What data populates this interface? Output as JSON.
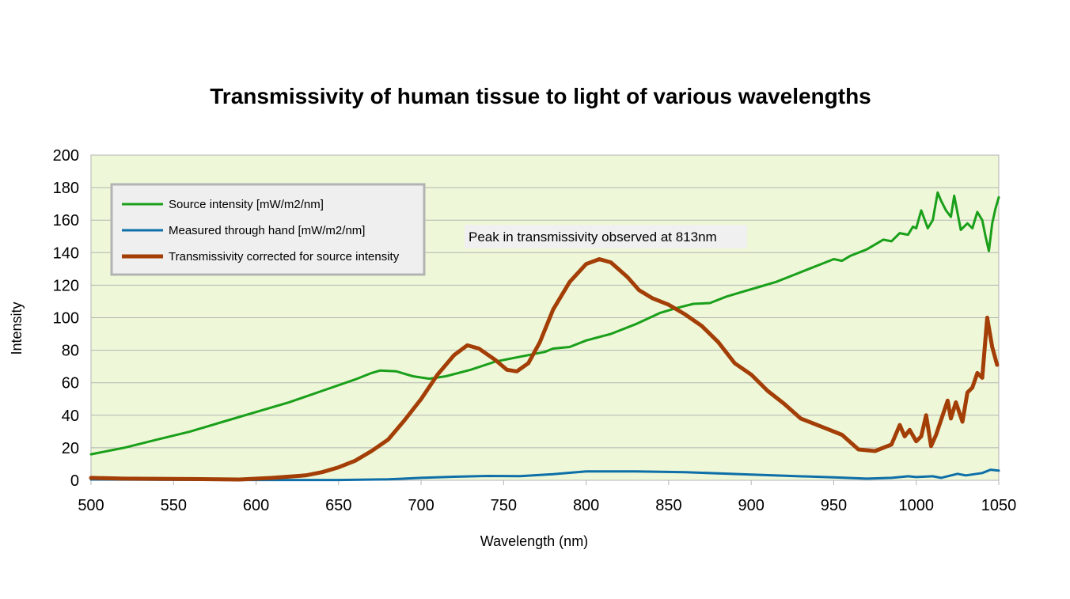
{
  "chart_data": {
    "type": "line",
    "title": "Transmissivity of human tissue to light of various wavelengths",
    "xlabel": "Wavelength (nm)",
    "ylabel": "Intensity",
    "xlim": [
      500,
      1050
    ],
    "ylim": [
      0,
      200
    ],
    "x_ticks": [
      500,
      550,
      600,
      650,
      700,
      750,
      800,
      850,
      900,
      950,
      1000,
      1050
    ],
    "y_ticks": [
      0,
      20,
      40,
      60,
      80,
      100,
      120,
      140,
      160,
      180,
      200
    ],
    "grid": "horizontal",
    "plot_background": "#eef8d8",
    "legend_position": "top-left",
    "annotation": "Peak in transmissivity observed at 813nm",
    "series": [
      {
        "name": "Source intensity [mW/m2/nm]",
        "color": "#1a9f1a",
        "points": [
          [
            500,
            16
          ],
          [
            520,
            20
          ],
          [
            540,
            25
          ],
          [
            560,
            30
          ],
          [
            580,
            36
          ],
          [
            600,
            42
          ],
          [
            620,
            48
          ],
          [
            640,
            55
          ],
          [
            660,
            62
          ],
          [
            670,
            66
          ],
          [
            675,
            67.5
          ],
          [
            685,
            67
          ],
          [
            695,
            64
          ],
          [
            705,
            62.5
          ],
          [
            715,
            64
          ],
          [
            730,
            68
          ],
          [
            745,
            73
          ],
          [
            760,
            76
          ],
          [
            775,
            79
          ],
          [
            780,
            81
          ],
          [
            790,
            82
          ],
          [
            800,
            86
          ],
          [
            815,
            90
          ],
          [
            830,
            96
          ],
          [
            845,
            103
          ],
          [
            855,
            106
          ],
          [
            865,
            108.5
          ],
          [
            875,
            109
          ],
          [
            885,
            113
          ],
          [
            895,
            116
          ],
          [
            905,
            119
          ],
          [
            915,
            122
          ],
          [
            925,
            126
          ],
          [
            935,
            130
          ],
          [
            945,
            134
          ],
          [
            950,
            136
          ],
          [
            955,
            135
          ],
          [
            960,
            138
          ],
          [
            970,
            142
          ],
          [
            980,
            148
          ],
          [
            985,
            147
          ],
          [
            990,
            152
          ],
          [
            995,
            151
          ],
          [
            998,
            156
          ],
          [
            1000,
            155
          ],
          [
            1003,
            166
          ],
          [
            1007,
            155
          ],
          [
            1010,
            160
          ],
          [
            1013,
            177
          ],
          [
            1015,
            172
          ],
          [
            1018,
            166
          ],
          [
            1021,
            162
          ],
          [
            1023,
            175
          ],
          [
            1027,
            154
          ],
          [
            1031,
            158
          ],
          [
            1034,
            155
          ],
          [
            1037,
            165
          ],
          [
            1040,
            160
          ],
          [
            1042,
            150
          ],
          [
            1044,
            141
          ],
          [
            1046,
            158
          ],
          [
            1048,
            167
          ],
          [
            1050,
            174
          ]
        ]
      },
      {
        "name": "Measured through hand [mW/m2/nm]",
        "color": "#0e6fa8",
        "points": [
          [
            500,
            0.5
          ],
          [
            550,
            0.3
          ],
          [
            600,
            0.2
          ],
          [
            650,
            0.2
          ],
          [
            680,
            0.6
          ],
          [
            700,
            1.5
          ],
          [
            720,
            2.2
          ],
          [
            740,
            2.7
          ],
          [
            760,
            2.6
          ],
          [
            780,
            3.8
          ],
          [
            800,
            5.5
          ],
          [
            830,
            5.5
          ],
          [
            860,
            5
          ],
          [
            900,
            3.5
          ],
          [
            950,
            1.8
          ],
          [
            970,
            1
          ],
          [
            985,
            1.5
          ],
          [
            995,
            2.5
          ],
          [
            1000,
            2
          ],
          [
            1010,
            2.5
          ],
          [
            1015,
            1.5
          ],
          [
            1025,
            4
          ],
          [
            1030,
            3
          ],
          [
            1040,
            4.5
          ],
          [
            1045,
            6.5
          ],
          [
            1050,
            6
          ]
        ]
      },
      {
        "name": "Transmissivity corrected for source intensity",
        "color": "#a33e06",
        "points": [
          [
            500,
            1.5
          ],
          [
            520,
            1
          ],
          [
            560,
            0.8
          ],
          [
            590,
            0.5
          ],
          [
            610,
            1.5
          ],
          [
            630,
            3
          ],
          [
            640,
            5
          ],
          [
            650,
            8
          ],
          [
            660,
            12
          ],
          [
            670,
            18
          ],
          [
            680,
            25
          ],
          [
            690,
            37
          ],
          [
            700,
            50
          ],
          [
            710,
            65
          ],
          [
            720,
            77
          ],
          [
            728,
            83
          ],
          [
            735,
            81
          ],
          [
            745,
            74
          ],
          [
            752,
            68
          ],
          [
            758,
            67
          ],
          [
            765,
            72
          ],
          [
            772,
            85
          ],
          [
            780,
            105
          ],
          [
            790,
            122
          ],
          [
            800,
            133
          ],
          [
            808,
            136
          ],
          [
            815,
            134
          ],
          [
            825,
            125
          ],
          [
            832,
            117
          ],
          [
            840,
            112
          ],
          [
            850,
            108
          ],
          [
            860,
            102
          ],
          [
            870,
            95
          ],
          [
            880,
            85
          ],
          [
            890,
            72
          ],
          [
            900,
            65
          ],
          [
            910,
            55
          ],
          [
            920,
            47
          ],
          [
            930,
            38
          ],
          [
            945,
            32
          ],
          [
            955,
            28
          ],
          [
            965,
            19
          ],
          [
            975,
            18
          ],
          [
            985,
            22
          ],
          [
            990,
            34
          ],
          [
            993,
            27
          ],
          [
            996,
            31
          ],
          [
            1000,
            24
          ],
          [
            1003,
            27
          ],
          [
            1006,
            40
          ],
          [
            1009,
            21
          ],
          [
            1012,
            28
          ],
          [
            1016,
            40
          ],
          [
            1019,
            49
          ],
          [
            1021,
            38
          ],
          [
            1024,
            48
          ],
          [
            1028,
            36
          ],
          [
            1031,
            54
          ],
          [
            1034,
            57
          ],
          [
            1037,
            66
          ],
          [
            1040,
            63
          ],
          [
            1043,
            100
          ],
          [
            1046,
            82
          ],
          [
            1049,
            71
          ]
        ]
      }
    ]
  }
}
